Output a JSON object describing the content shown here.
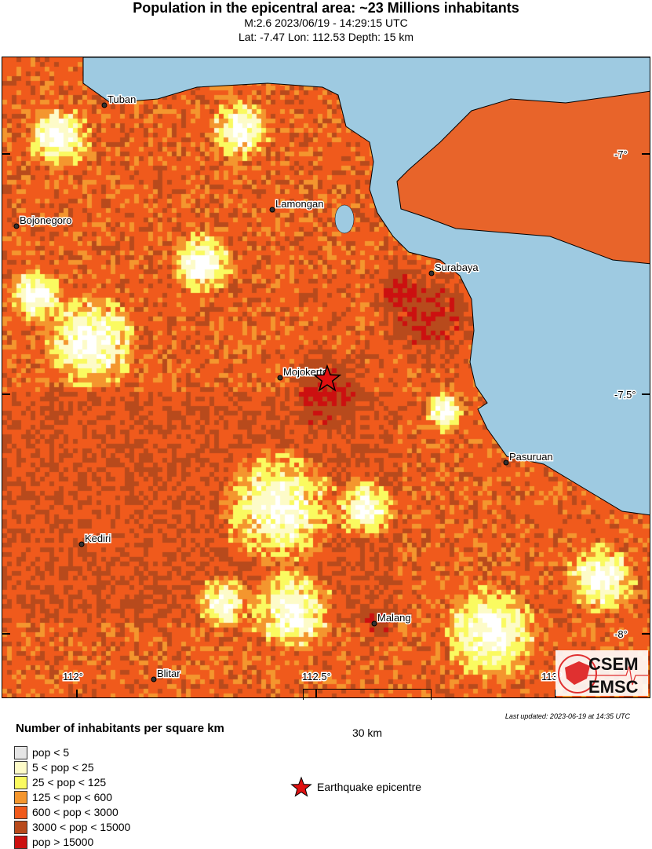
{
  "header": {
    "title": "Population in the epicentral area: ~23 Millions inhabitants",
    "line1": "M:2.6 2023/06/19 - 14:29:15 UTC",
    "line2": "Lat: -7.47 Lon: 112.53 Depth: 15 km"
  },
  "map": {
    "epicenter": {
      "lat": -7.47,
      "lon": 112.53
    },
    "lon_ticks": [
      "112°",
      "112.5°",
      "113°"
    ],
    "lat_ticks": [
      "-7°",
      "-7.5°",
      "-8°"
    ],
    "cities": [
      {
        "name": "Tuban"
      },
      {
        "name": "Lamongan"
      },
      {
        "name": "Bojonegoro"
      },
      {
        "name": "Surabaya"
      },
      {
        "name": "Mojokerto"
      },
      {
        "name": "Pasuruan"
      },
      {
        "name": "Kediri"
      },
      {
        "name": "Malang"
      },
      {
        "name": "Blitar"
      }
    ],
    "colors": {
      "sea": "#9ecae1",
      "coast": "#000000"
    },
    "logo": {
      "text_top": "CSEM",
      "text_bottom": "EMSC",
      "color": "#e03030"
    }
  },
  "scale_bar": {
    "label": "30 km"
  },
  "last_updated": "Last updated: 2023-06-19 at 14:35 UTC",
  "legend": {
    "title": "Number of inhabitants per square km",
    "items": [
      {
        "label": "pop < 5",
        "color": "#e5e5e5"
      },
      {
        "label": "5 < pop < 25",
        "color": "#fdfbc8"
      },
      {
        "label": "25 < pop < 125",
        "color": "#fafa60"
      },
      {
        "label": "125 < pop < 600",
        "color": "#f4962e"
      },
      {
        "label": "600 < pop < 3000",
        "color": "#f05a1c"
      },
      {
        "label": "3000 < pop < 15000",
        "color": "#b84a1c"
      },
      {
        "label": "pop > 15000",
        "color": "#cc1010"
      }
    ],
    "epicentre_label": "Earthquake epicentre"
  }
}
